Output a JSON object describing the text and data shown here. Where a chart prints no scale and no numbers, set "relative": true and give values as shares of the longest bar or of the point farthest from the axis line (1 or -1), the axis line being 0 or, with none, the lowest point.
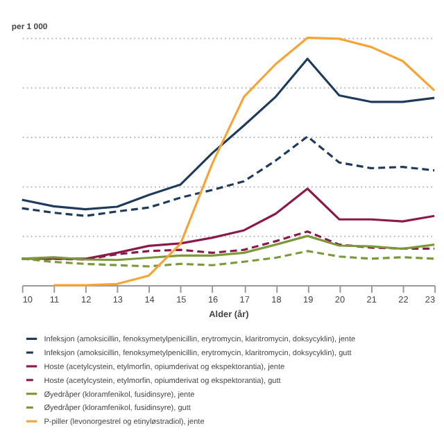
{
  "chart_data": {
    "type": "line",
    "relative": true,
    "ylabel": "per 1 000",
    "xlabel": "Alder (år)",
    "categories": [
      "10",
      "11",
      "12",
      "13",
      "14",
      "15",
      "16",
      "17",
      "18",
      "19",
      "20",
      "21",
      "22",
      "23"
    ],
    "grid": "y",
    "legend": "bottom",
    "series": [
      {
        "name": "Infeksjon (amoksicillin, fenoksymetylpenicillin, erytromycin, klaritromycin, doksycyklin), jente",
        "color": "#1f3b5c",
        "line_style": "solid",
        "values": [
          0.345,
          0.319,
          0.307,
          0.317,
          0.365,
          0.407,
          0.534,
          0.646,
          0.762,
          0.915,
          0.767,
          0.741,
          0.741,
          0.757
        ]
      },
      {
        "name": "Infeksjon (amoksicillin, fenoksymetylpenicillin, erytromycin, klaritromycin, doksycyklin), gutt",
        "color": "#1f3b5c",
        "line_style": "dashed",
        "values": [
          0.311,
          0.293,
          0.28,
          0.298,
          0.314,
          0.354,
          0.385,
          0.42,
          0.504,
          0.601,
          0.496,
          0.473,
          0.478,
          0.464
        ]
      },
      {
        "name": "Hoste (acetylcystein, etylmorfin, opiumderivat og ekspektorantia), jente",
        "color": "#8b1a4a",
        "line_style": "solid",
        "values": [
          0.107,
          0.107,
          0.107,
          0.131,
          0.159,
          0.169,
          0.192,
          0.222,
          0.289,
          0.39,
          0.266,
          0.266,
          0.258,
          0.28
        ]
      },
      {
        "name": "Hoste (acetylcystein, etylmorfin, opiumderivat og ekspektorantia), gutt",
        "color": "#8b1a4a",
        "line_style": "dashed",
        "values": [
          0.107,
          0.107,
          0.104,
          0.125,
          0.138,
          0.143,
          0.131,
          0.143,
          0.178,
          0.217,
          0.164,
          0.152,
          0.148,
          0.148
        ]
      },
      {
        "name": "Øyedråper (kloramfenikol, fusidinsyre), jente",
        "color": "#7a9a3a",
        "line_style": "solid",
        "values": [
          0.107,
          0.113,
          0.104,
          0.102,
          0.111,
          0.12,
          0.12,
          0.131,
          0.164,
          0.199,
          0.16,
          0.157,
          0.147,
          0.164
        ]
      },
      {
        "name": "Øyedråper (kloramfenikol, fusidinsyre), gutt",
        "color": "#7a9a3a",
        "line_style": "dashed",
        "values": [
          0.107,
          0.094,
          0.086,
          0.081,
          0.076,
          0.086,
          0.081,
          0.095,
          0.111,
          0.138,
          0.116,
          0.107,
          0.113,
          0.107
        ]
      },
      {
        "name": "P-piller (levonorgestrel og etinyløstradiol), jente",
        "color": "#f7a336",
        "line_style": "solid",
        "values": [
          null,
          0.0,
          0.0,
          0.005,
          0.039,
          0.168,
          0.492,
          0.762,
          0.894,
          1.0,
          0.996,
          0.963,
          0.906,
          0.787
        ]
      }
    ]
  }
}
